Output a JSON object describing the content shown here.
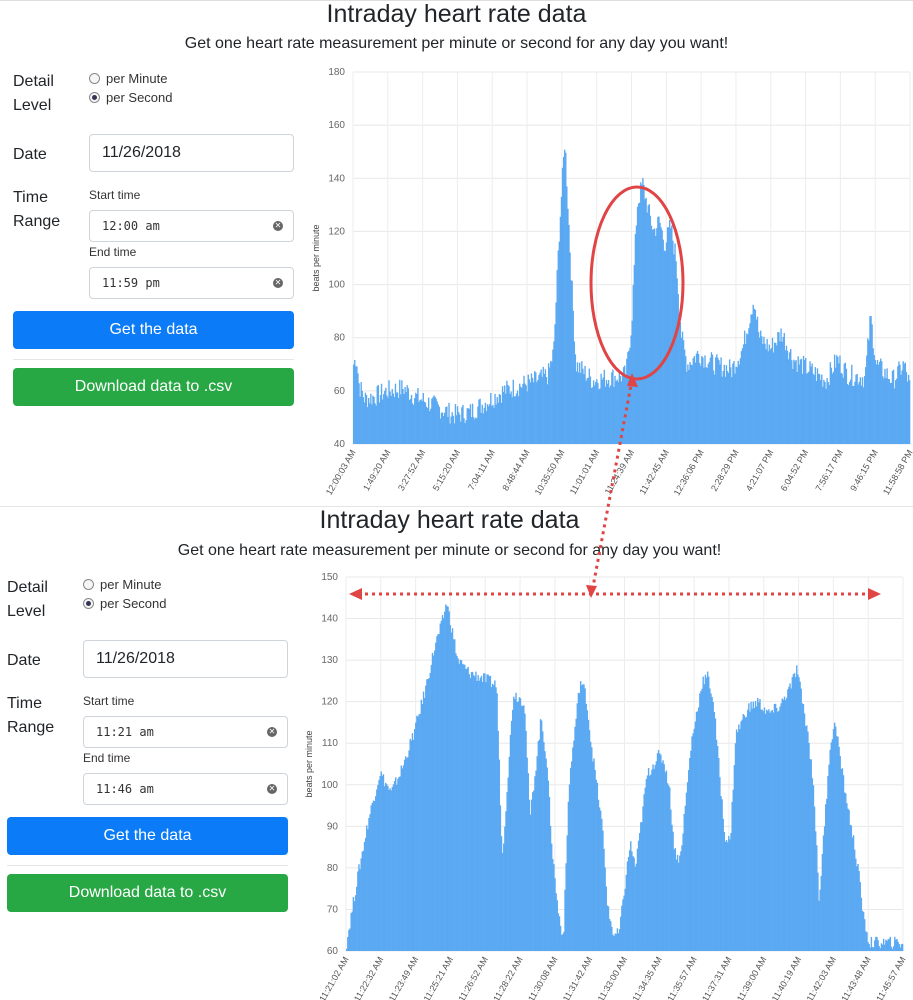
{
  "panels": [
    {
      "title": "Intraday heart rate data",
      "subtitle": "Get one heart rate measurement per minute or second for any day you want!",
      "detail_label": "Detail Level",
      "options": [
        "per Minute",
        "per Second"
      ],
      "selected_option": "per Second",
      "date_label": "Date",
      "date_value": "11/26/2018",
      "time_label": "Time Range",
      "start_label": "Start time",
      "start_value": "12:00 am",
      "end_label": "End time",
      "end_value": "11:59 pm",
      "get_button": "Get the data",
      "download_button": "Download data to .csv"
    },
    {
      "title": "Intraday heart rate data",
      "subtitle": "Get one heart rate measurement per minute or second for any day you want!",
      "detail_label": "Detail Level",
      "options": [
        "per Minute",
        "per Second"
      ],
      "selected_option": "per Second",
      "date_label": "Date",
      "date_value": "11/26/2018",
      "time_label": "Time Range",
      "start_label": "Start time",
      "start_value": "11:21 am",
      "end_label": "End time",
      "end_value": "11:46 am",
      "get_button": "Get the data",
      "download_button": "Download data to .csv"
    }
  ],
  "colors": {
    "bar": "#5aa9f2",
    "button_blue": "#0b7bf8",
    "button_green": "#28a745",
    "annotation": "#e04444"
  },
  "chart_data": [
    {
      "type": "bar",
      "ylabel": "beats per minute",
      "ylim": [
        40,
        180
      ],
      "y_ticks": [
        40,
        60,
        80,
        100,
        120,
        140,
        160,
        180
      ],
      "x_tick_labels": [
        "12:00:03 AM",
        "1:49:20 AM",
        "3:27:52 AM",
        "5:15:20 AM",
        "7:04:11 AM",
        "8:48:44 AM",
        "10:35:50 AM",
        "11:01:01 AM",
        "11:24:39 AM",
        "11:42:45 AM",
        "12:36:06 PM",
        "2:28:29 PM",
        "4:21:07 PM",
        "6:04:52 PM",
        "7:56:17 PM",
        "9:46:15 PM",
        "11:58:58 PM"
      ],
      "grid": true,
      "profile": [
        [
          0,
          70
        ],
        [
          0.5,
          73
        ],
        [
          1,
          62
        ],
        [
          2,
          57
        ],
        [
          4,
          58
        ],
        [
          6,
          60
        ],
        [
          9,
          61
        ],
        [
          11,
          58
        ],
        [
          14,
          55
        ],
        [
          16,
          53
        ],
        [
          18,
          51
        ],
        [
          21,
          52
        ],
        [
          24,
          56
        ],
        [
          27,
          60
        ],
        [
          30,
          62
        ],
        [
          33,
          64
        ],
        [
          35,
          66
        ],
        [
          36,
          75
        ],
        [
          37,
          120
        ],
        [
          38,
          155
        ],
        [
          39,
          110
        ],
        [
          40,
          70
        ],
        [
          43,
          64
        ],
        [
          46,
          65
        ],
        [
          49,
          66
        ],
        [
          50,
          85
        ],
        [
          51,
          130
        ],
        [
          52,
          138
        ],
        [
          53,
          128
        ],
        [
          54,
          120
        ],
        [
          55,
          124
        ],
        [
          56,
          115
        ],
        [
          57,
          122
        ],
        [
          58,
          110
        ],
        [
          59,
          80
        ],
        [
          60,
          70
        ],
        [
          62,
          74
        ],
        [
          65,
          70
        ],
        [
          68,
          68
        ],
        [
          70,
          76
        ],
        [
          72,
          95
        ],
        [
          73,
          80
        ],
        [
          75,
          76
        ],
        [
          77,
          82
        ],
        [
          79,
          72
        ],
        [
          82,
          68
        ],
        [
          85,
          64
        ],
        [
          87,
          72
        ],
        [
          89,
          66
        ],
        [
          92,
          65
        ],
        [
          93,
          88
        ],
        [
          94,
          70
        ],
        [
          97,
          64
        ],
        [
          99,
          70
        ],
        [
          100,
          62
        ]
      ],
      "annotations": [
        {
          "type": "ellipse",
          "description": "red circle around the 11:24–11:42 AM peak"
        }
      ]
    },
    {
      "type": "bar",
      "ylabel": "beats per minute",
      "ylim": [
        60,
        150
      ],
      "y_ticks": [
        60,
        70,
        80,
        90,
        100,
        110,
        120,
        130,
        140,
        150
      ],
      "x_tick_labels": [
        "11:21:02 AM",
        "11:22:32 AM",
        "11:23:49 AM",
        "11:25:21 AM",
        "11:26:52 AM",
        "11:28:22 AM",
        "11:30:08 AM",
        "11:31:42 AM",
        "11:33:00 AM",
        "11:34:35 AM",
        "11:35:57 AM",
        "11:37:31 AM",
        "11:39:00 AM",
        "11:40:19 AM",
        "11:42:03 AM",
        "11:43:48 AM",
        "11:45:57 AM"
      ],
      "grid": true,
      "profile": [
        [
          0,
          62
        ],
        [
          2,
          78
        ],
        [
          4,
          92
        ],
        [
          6,
          103
        ],
        [
          8,
          98
        ],
        [
          10,
          104
        ],
        [
          12,
          112
        ],
        [
          14,
          122
        ],
        [
          16,
          134
        ],
        [
          17,
          138
        ],
        [
          18,
          144
        ],
        [
          19,
          137
        ],
        [
          20,
          130
        ],
        [
          22,
          127
        ],
        [
          24,
          126
        ],
        [
          27,
          124
        ],
        [
          28,
          82
        ],
        [
          30,
          122
        ],
        [
          32,
          120
        ],
        [
          33,
          92
        ],
        [
          34,
          104
        ],
        [
          35,
          116
        ],
        [
          36,
          106
        ],
        [
          37,
          84
        ],
        [
          38,
          70
        ],
        [
          39,
          63
        ],
        [
          40,
          100
        ],
        [
          42,
          125
        ],
        [
          43,
          122
        ],
        [
          44,
          110
        ],
        [
          46,
          90
        ],
        [
          47,
          70
        ],
        [
          48,
          64
        ],
        [
          49,
          64
        ],
        [
          51,
          86
        ],
        [
          52,
          80
        ],
        [
          54,
          102
        ],
        [
          56,
          107
        ],
        [
          57,
          106
        ],
        [
          58,
          100
        ],
        [
          59,
          84
        ],
        [
          60,
          82
        ],
        [
          62,
          110
        ],
        [
          64,
          125
        ],
        [
          65,
          126
        ],
        [
          66,
          120
        ],
        [
          68,
          88
        ],
        [
          69,
          86
        ],
        [
          70,
          112
        ],
        [
          72,
          118
        ],
        [
          74,
          120
        ],
        [
          76,
          117
        ],
        [
          78,
          119
        ],
        [
          80,
          124
        ],
        [
          81,
          128
        ],
        [
          82,
          120
        ],
        [
          83,
          112
        ],
        [
          84,
          100
        ],
        [
          85,
          72
        ],
        [
          87,
          110
        ],
        [
          88,
          115
        ],
        [
          89,
          104
        ],
        [
          90,
          96
        ],
        [
          92,
          80
        ],
        [
          93,
          68
        ],
        [
          94,
          62
        ],
        [
          95,
          62
        ]
      ],
      "annotations": [
        {
          "type": "double-arrow",
          "description": "red dotted horizontal double arrow across the zoomed range"
        }
      ]
    }
  ]
}
